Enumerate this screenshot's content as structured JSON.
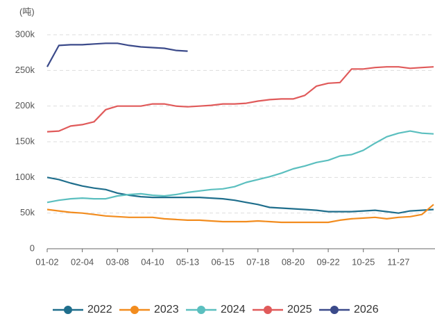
{
  "chart_data": {
    "type": "line",
    "y_label": "(吨)",
    "categories": [
      "01-02",
      null,
      null,
      "02-04",
      null,
      null,
      "03-08",
      null,
      null,
      "04-10",
      null,
      null,
      "05-13",
      null,
      null,
      "06-15",
      null,
      null,
      "07-18",
      null,
      null,
      "08-20",
      null,
      null,
      "09-22",
      null,
      null,
      "10-25",
      null,
      null,
      "11-27",
      null,
      null,
      null
    ],
    "ylim": [
      0,
      300000
    ],
    "yticks": [
      0,
      {
        "value": 50000,
        "label": "50k"
      },
      {
        "value": 100000,
        "label": "100k"
      },
      {
        "value": 150000,
        "label": "150k"
      },
      {
        "value": 200000,
        "label": "200k"
      },
      {
        "value": 250000,
        "label": "250k"
      },
      {
        "value": 300000,
        "label": "300k"
      }
    ],
    "grid": true,
    "series": [
      {
        "name": "2022",
        "color": "#1f6e8c",
        "values": [
          100000,
          97000,
          92000,
          88000,
          85000,
          83000,
          78000,
          75000,
          73000,
          72000,
          72000,
          72000,
          72000,
          72000,
          71000,
          70000,
          68000,
          65000,
          62000,
          58000,
          57000,
          56000,
          55000,
          54000,
          52000,
          52000,
          52000,
          53000,
          54000,
          52000,
          50000,
          53000,
          54000,
          55000
        ]
      },
      {
        "name": "2023",
        "color": "#f28c1e",
        "values": [
          55000,
          53000,
          51000,
          50000,
          48000,
          46000,
          45000,
          44000,
          44000,
          44000,
          42000,
          41000,
          40000,
          40000,
          39000,
          38000,
          38000,
          38000,
          39000,
          38000,
          37000,
          37000,
          37000,
          37000,
          37000,
          40000,
          42000,
          43000,
          44000,
          42000,
          44000,
          45000,
          48000,
          62000
        ]
      },
      {
        "name": "2024",
        "color": "#5bbfbf",
        "values": [
          65000,
          68000,
          70000,
          71000,
          70000,
          70000,
          74000,
          76000,
          77000,
          75000,
          74000,
          76000,
          79000,
          81000,
          83000,
          84000,
          87000,
          93000,
          97000,
          101000,
          106000,
          112000,
          116000,
          121000,
          124000,
          130000,
          132000,
          138000,
          148000,
          157000,
          162000,
          165000,
          162000,
          161000
        ]
      },
      {
        "name": "2025",
        "color": "#e05a5a",
        "values": [
          164000,
          165000,
          172000,
          174000,
          178000,
          195000,
          200000,
          200000,
          200000,
          203000,
          203000,
          200000,
          199000,
          200000,
          201000,
          203000,
          203000,
          204000,
          207000,
          209000,
          210000,
          210000,
          215000,
          228000,
          232000,
          233000,
          252000,
          252000,
          254000,
          255000,
          255000,
          253000,
          254000,
          255000
        ]
      },
      {
        "name": "2026",
        "color": "#3b4a8a",
        "values": [
          255000,
          285000,
          286000,
          286000,
          287000,
          288000,
          288000,
          285000,
          283000,
          282000,
          281000,
          278000,
          277000,
          null,
          null,
          null,
          null,
          null,
          null,
          null,
          null,
          null,
          null,
          null,
          null,
          null,
          null,
          null,
          null,
          null,
          null,
          null,
          null,
          null
        ]
      }
    ]
  }
}
